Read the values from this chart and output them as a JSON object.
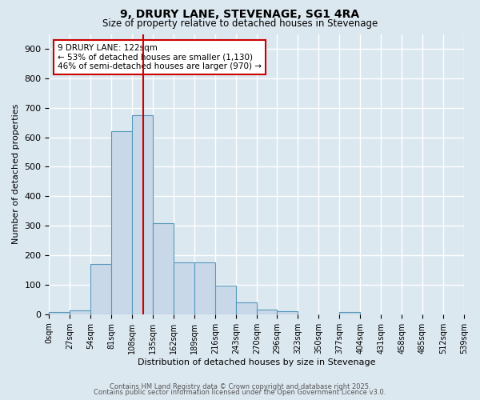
{
  "title1": "9, DRURY LANE, STEVENAGE, SG1 4RA",
  "title2": "Size of property relative to detached houses in Stevenage",
  "xlabel": "Distribution of detached houses by size in Stevenage",
  "ylabel": "Number of detached properties",
  "bin_edges": [
    0,
    27,
    54,
    81,
    108,
    135,
    162,
    189,
    216,
    243,
    270,
    296,
    323,
    350,
    377,
    404,
    431,
    458,
    485,
    512,
    539
  ],
  "bar_heights": [
    7,
    12,
    170,
    620,
    675,
    310,
    175,
    175,
    98,
    40,
    15,
    10,
    0,
    0,
    7,
    0,
    0,
    0,
    0,
    0
  ],
  "bar_color": "#c8d8e8",
  "bar_edge_color": "#5599bb",
  "vline_x": 122,
  "vline_color": "#cc0000",
  "annotation_text": "9 DRURY LANE: 122sqm\n← 53% of detached houses are smaller (1,130)\n46% of semi-detached houses are larger (970) →",
  "annotation_box_color": "#ffffff",
  "annotation_border_color": "#cc0000",
  "ylim": [
    0,
    950
  ],
  "yticks": [
    0,
    100,
    200,
    300,
    400,
    500,
    600,
    700,
    800,
    900
  ],
  "tick_labels": [
    "0sqm",
    "27sqm",
    "54sqm",
    "81sqm",
    "108sqm",
    "135sqm",
    "162sqm",
    "189sqm",
    "216sqm",
    "243sqm",
    "270sqm",
    "296sqm",
    "323sqm",
    "350sqm",
    "377sqm",
    "404sqm",
    "431sqm",
    "458sqm",
    "485sqm",
    "512sqm",
    "539sqm"
  ],
  "footnote1": "Contains HM Land Registry data © Crown copyright and database right 2025.",
  "footnote2": "Contains public sector information licensed under the Open Government Licence v3.0.",
  "bg_color": "#dce8f0",
  "grid_color": "#ffffff"
}
